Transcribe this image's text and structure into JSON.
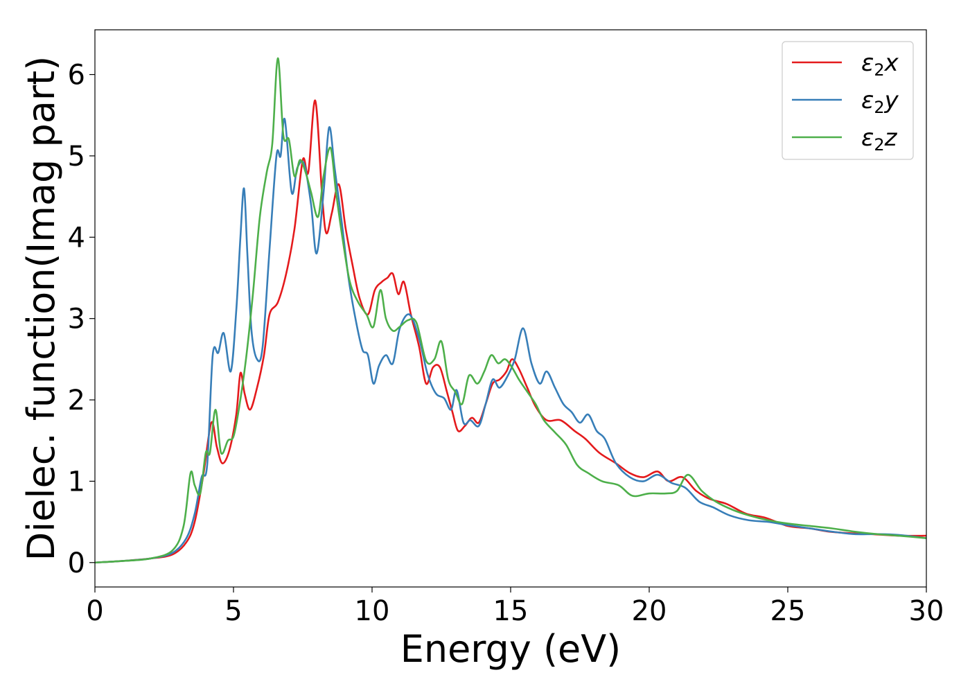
{
  "chart_data": {
    "type": "line",
    "xlabel": "Energy (eV)",
    "ylabel": "Dielec. function(Imag part)",
    "xlim": [
      0,
      30
    ],
    "ylim": [
      -0.3,
      6.55
    ],
    "xticks": [
      "0",
      "5",
      "10",
      "15",
      "20",
      "25",
      "30"
    ],
    "yticks": [
      "0",
      "1",
      "2",
      "3",
      "4",
      "5",
      "6"
    ],
    "legend_position": "top-right",
    "grid": false,
    "series": [
      {
        "name": "ε₂x",
        "legend_main": "ε",
        "legend_sub": "2",
        "legend_var": "x",
        "color": "#e41a1c",
        "x": [
          0,
          1,
          2,
          2.8,
          3.3,
          3.6,
          3.9,
          4.2,
          4.4,
          4.6,
          4.85,
          5.1,
          5.25,
          5.4,
          5.6,
          5.85,
          6.1,
          6.3,
          6.6,
          6.9,
          7.2,
          7.5,
          7.7,
          7.95,
          8.2,
          8.35,
          8.55,
          8.8,
          9.05,
          9.3,
          9.55,
          9.85,
          10.1,
          10.35,
          10.55,
          10.75,
          10.95,
          11.15,
          11.4,
          11.7,
          11.95,
          12.2,
          12.45,
          12.7,
          12.9,
          13.1,
          13.35,
          13.6,
          13.85,
          14.1,
          14.35,
          14.6,
          14.85,
          15.05,
          15.3,
          15.6,
          15.9,
          16.3,
          16.8,
          17.3,
          17.7,
          18.2,
          18.8,
          19.3,
          19.8,
          20.3,
          20.7,
          21.2,
          21.7,
          22.2,
          22.8,
          23.5,
          24.2,
          25,
          25.8,
          26.5,
          27.3,
          28,
          29,
          30
        ],
        "y": [
          0,
          0.02,
          0.05,
          0.1,
          0.25,
          0.5,
          1.05,
          1.72,
          1.42,
          1.22,
          1.38,
          1.82,
          2.33,
          2.08,
          1.88,
          2.15,
          2.55,
          3.05,
          3.2,
          3.55,
          4.1,
          4.95,
          4.8,
          5.68,
          4.5,
          4.05,
          4.3,
          4.65,
          4.1,
          3.65,
          3.25,
          3.05,
          3.35,
          3.45,
          3.5,
          3.55,
          3.3,
          3.45,
          3.05,
          2.65,
          2.2,
          2.4,
          2.4,
          2.1,
          1.85,
          1.62,
          1.68,
          1.78,
          1.72,
          1.95,
          2.2,
          2.25,
          2.35,
          2.5,
          2.38,
          2.15,
          1.92,
          1.75,
          1.75,
          1.62,
          1.52,
          1.35,
          1.22,
          1.1,
          1.05,
          1.12,
          1.0,
          1.05,
          0.88,
          0.78,
          0.72,
          0.6,
          0.55,
          0.45,
          0.42,
          0.38,
          0.36,
          0.35,
          0.33,
          0.33
        ]
      },
      {
        "name": "ε₂y",
        "legend_main": "ε",
        "legend_sub": "2",
        "legend_var": "y",
        "color": "#377eb8",
        "x": [
          0,
          1,
          2,
          2.8,
          3.3,
          3.6,
          3.85,
          4.05,
          4.25,
          4.45,
          4.65,
          4.9,
          5.1,
          5.25,
          5.38,
          5.5,
          5.65,
          5.85,
          6.05,
          6.3,
          6.55,
          6.7,
          6.85,
          7.1,
          7.3,
          7.55,
          7.8,
          8.0,
          8.25,
          8.45,
          8.65,
          8.9,
          9.15,
          9.4,
          9.65,
          9.85,
          10.05,
          10.25,
          10.5,
          10.75,
          11.0,
          11.35,
          11.7,
          12.0,
          12.3,
          12.6,
          12.85,
          13.05,
          13.3,
          13.55,
          13.85,
          14.1,
          14.35,
          14.6,
          14.9,
          15.15,
          15.45,
          15.75,
          16.05,
          16.3,
          16.6,
          16.9,
          17.2,
          17.5,
          17.8,
          18.1,
          18.4,
          18.8,
          19.3,
          19.8,
          20.3,
          20.8,
          21.3,
          21.8,
          22.3,
          22.9,
          23.6,
          24.3,
          25,
          25.8,
          26.6,
          27.4,
          28.2,
          29,
          30
        ],
        "y": [
          0,
          0.02,
          0.05,
          0.12,
          0.3,
          0.6,
          1.05,
          1.2,
          2.55,
          2.58,
          2.82,
          2.35,
          3.1,
          4.0,
          4.6,
          3.8,
          2.85,
          2.5,
          2.65,
          3.85,
          5.0,
          5.0,
          5.45,
          4.55,
          4.85,
          4.9,
          4.4,
          3.8,
          4.55,
          5.35,
          4.85,
          4.2,
          3.5,
          3.0,
          2.62,
          2.55,
          2.2,
          2.42,
          2.55,
          2.45,
          2.88,
          3.05,
          2.75,
          2.32,
          2.08,
          2.02,
          1.88,
          2.12,
          1.72,
          1.75,
          1.68,
          1.95,
          2.25,
          2.15,
          2.3,
          2.5,
          2.88,
          2.45,
          2.2,
          2.35,
          2.15,
          1.95,
          1.85,
          1.72,
          1.82,
          1.62,
          1.52,
          1.22,
          1.05,
          1.0,
          1.08,
          0.98,
          0.92,
          0.75,
          0.68,
          0.58,
          0.52,
          0.5,
          0.46,
          0.42,
          0.38,
          0.35,
          0.35,
          0.34,
          0.3
        ]
      },
      {
        "name": "ε₂z",
        "legend_main": "ε",
        "legend_sub": "2",
        "legend_var": "z",
        "color": "#4daf4a",
        "x": [
          0,
          1,
          2,
          2.8,
          3.2,
          3.45,
          3.6,
          3.8,
          4.0,
          4.15,
          4.35,
          4.55,
          4.8,
          5.0,
          5.2,
          5.45,
          5.7,
          5.95,
          6.2,
          6.4,
          6.6,
          6.8,
          7.0,
          7.2,
          7.4,
          7.6,
          7.8,
          8.05,
          8.25,
          8.5,
          8.7,
          8.95,
          9.2,
          9.5,
          9.8,
          10.05,
          10.3,
          10.5,
          10.75,
          11.0,
          11.3,
          11.6,
          11.95,
          12.25,
          12.5,
          12.75,
          13.0,
          13.25,
          13.5,
          13.8,
          14.05,
          14.3,
          14.55,
          14.8,
          15.05,
          15.3,
          15.6,
          15.9,
          16.2,
          16.6,
          17.0,
          17.4,
          17.8,
          18.3,
          18.9,
          19.4,
          20.0,
          20.6,
          21.0,
          21.4,
          21.9,
          22.4,
          23.0,
          23.6,
          24.3,
          25,
          25.8,
          26.6,
          27.4,
          28.2,
          29,
          30
        ],
        "y": [
          0,
          0.02,
          0.05,
          0.15,
          0.45,
          1.1,
          0.95,
          0.85,
          1.35,
          1.35,
          1.88,
          1.35,
          1.5,
          1.55,
          1.9,
          2.5,
          3.3,
          4.25,
          4.8,
          5.15,
          6.2,
          5.25,
          5.2,
          4.75,
          4.95,
          4.8,
          4.55,
          4.25,
          4.75,
          5.1,
          4.55,
          3.95,
          3.45,
          3.2,
          3.05,
          2.9,
          3.35,
          3.0,
          2.85,
          2.9,
          2.98,
          2.95,
          2.48,
          2.5,
          2.72,
          2.25,
          2.1,
          1.95,
          2.3,
          2.2,
          2.35,
          2.55,
          2.45,
          2.5,
          2.4,
          2.25,
          2.1,
          1.95,
          1.75,
          1.6,
          1.45,
          1.2,
          1.1,
          1.0,
          0.95,
          0.82,
          0.85,
          0.85,
          0.88,
          1.08,
          0.88,
          0.75,
          0.65,
          0.58,
          0.52,
          0.48,
          0.45,
          0.42,
          0.38,
          0.35,
          0.33,
          0.3
        ]
      }
    ]
  }
}
